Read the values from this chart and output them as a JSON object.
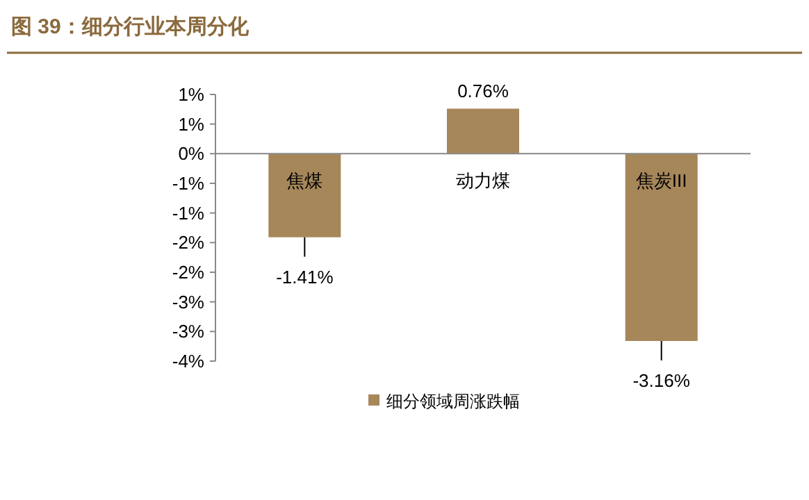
{
  "chart_data": {
    "type": "bar",
    "title": "图 39：细分行业本周分化",
    "categories": [
      "焦煤",
      "动力煤",
      "焦炭III"
    ],
    "series": [
      {
        "name": "细分领域周涨跌幅",
        "color": "#a6875a",
        "values": [
          -1.41,
          0.76,
          -3.16
        ],
        "value_labels": [
          "-1.41%",
          "0.76%",
          "-3.16%"
        ]
      }
    ],
    "ylim": [
      -3.5,
      1.0
    ],
    "yticks": [
      {
        "value": 1.0,
        "label": "1%"
      },
      {
        "value": 0.5,
        "label": "1%"
      },
      {
        "value": 0,
        "label": "0%"
      },
      {
        "value": -0.5,
        "label": "-1%"
      },
      {
        "value": -1.0,
        "label": "-1%"
      },
      {
        "value": -1.5,
        "label": "-2%"
      },
      {
        "value": -2.0,
        "label": "-2%"
      },
      {
        "value": -2.5,
        "label": "-3%"
      },
      {
        "value": -3.0,
        "label": "-3%"
      },
      {
        "value": -3.5,
        "label": "-4%"
      }
    ],
    "grid": false,
    "legend": "bottom"
  }
}
